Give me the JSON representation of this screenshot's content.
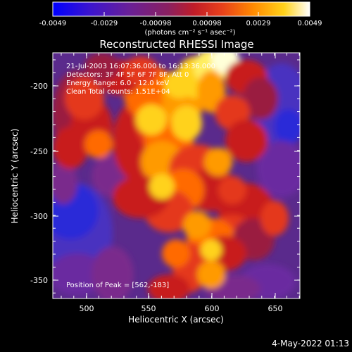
{
  "colorbar": {
    "tick_labels": [
      "-0.0049",
      "-0.0029",
      "-0.00098",
      "0.00098",
      "0.0029",
      "0.0049"
    ],
    "unit_label": "(photons cm⁻² s⁻¹ asec⁻²)",
    "colormap": [
      "#0000ff",
      "#4b14c8",
      "#7a2294",
      "#b0203c",
      "#e4381a",
      "#ff7a00",
      "#ffb000",
      "#ffea40",
      "#ffffff"
    ]
  },
  "plot": {
    "title": "Reconstructed RHESSI Image",
    "xlabel": "Heliocentric X (arcsec)",
    "ylabel": "Heliocentric Y (arcsec)",
    "x_ticks": [
      "500",
      "550",
      "600",
      "650"
    ],
    "y_ticks": [
      "-200",
      "-250",
      "-300",
      "-350"
    ],
    "xlim": [
      474,
      667
    ],
    "ylim": [
      -365,
      -180
    ],
    "info_lines": [
      "21-Jul-2003 16:07:36.000 to 16:13:36.000",
      "Detectors: 3F 4F 5F 6F 7F 8F, Att 0",
      "Energy Range: 6.0 - 12.0 keV",
      "Clean    Total counts: 1.51E+04"
    ],
    "peak_label": "Position of Peak = [562,-183]"
  },
  "footer": {
    "timestamp": "4-May-2022 01:13"
  }
}
